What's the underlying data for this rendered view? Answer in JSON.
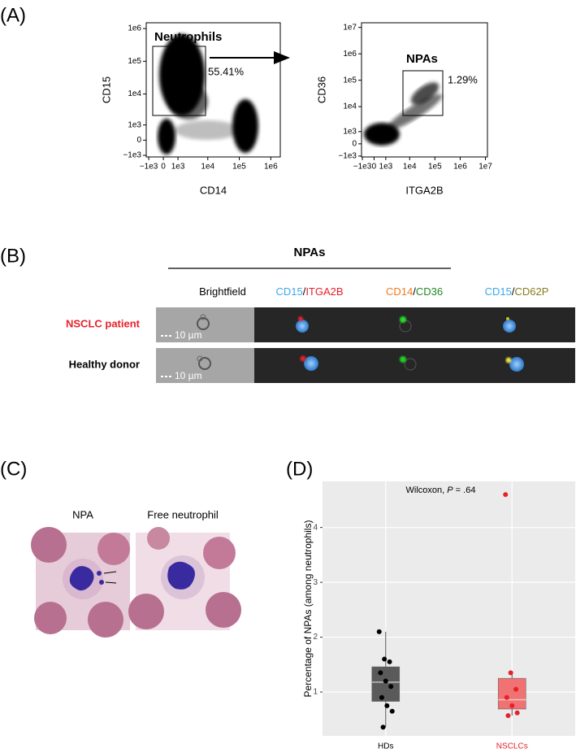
{
  "panels": [
    "(A)",
    "(B)",
    "(C)",
    "(D)"
  ],
  "chart_data": [
    {
      "type": "flow",
      "xlabel": "CD14",
      "ylabel": "CD15",
      "xlim": [
        -1250,
        2000000
      ],
      "ylim": [
        -1150,
        1500000
      ],
      "xticks": [
        {
          "value": -1000,
          "label": "−1e3"
        },
        0,
        {
          "value": 1000,
          "label": "1e3"
        },
        {
          "value": 10000,
          "label": "1e4"
        },
        {
          "value": 100000,
          "label": "1e5"
        },
        {
          "value": 1000000,
          "label": "1e6"
        }
      ],
      "yticks": [
        {
          "value": -1000,
          "label": "−1e3"
        },
        0,
        {
          "value": 1000,
          "label": "1e3"
        },
        {
          "value": 10000,
          "label": "1e4"
        },
        {
          "value": 100000,
          "label": "1e5"
        },
        {
          "value": 1000000,
          "label": "1e6"
        }
      ],
      "gate_label": "Neutrophils",
      "gate_percent": "55.41%"
    },
    {
      "type": "flow",
      "xlabel": "ITGA2B",
      "ylabel": "CD36",
      "xlim": [
        -1100,
        12000000
      ],
      "ylim": [
        -1100,
        15000000
      ],
      "xticks": [
        {
          "value": -1000,
          "label": "−1e3"
        },
        0,
        {
          "value": 1000,
          "label": "1e3"
        },
        {
          "value": 10000,
          "label": "1e4"
        },
        {
          "value": 100000,
          "label": "1e5"
        },
        {
          "value": 1000000,
          "label": "1e6"
        },
        {
          "value": 10000000,
          "label": "1e7"
        }
      ],
      "yticks": [
        {
          "value": -1000,
          "label": "−1e3"
        },
        0,
        {
          "value": 1000,
          "label": "1e3"
        },
        {
          "value": 10000,
          "label": "1e4"
        },
        {
          "value": 100000,
          "label": "1e5"
        },
        {
          "value": 1000000,
          "label": "1e6"
        },
        {
          "value": 10000000,
          "label": "1e7"
        }
      ],
      "gate_label": "NPAs",
      "gate_percent": "1.29%"
    },
    {
      "type": "box",
      "annotation": [
        "Wilcoxon, ",
        "P",
        " = .64"
      ],
      "ylabel": "Percentage of NPAs (among neutrophils)",
      "categories": [
        "HDs",
        "NSCLCs"
      ],
      "category_colors": [
        "#000000",
        "#e8202a"
      ],
      "ylim": [
        0.2,
        4.84
      ],
      "yticks": [
        1,
        2,
        3,
        4
      ],
      "grid": true,
      "boxes": [
        {
          "q1": 0.83,
          "median": 1.18,
          "q3": 1.46,
          "whisker_low": 0.36,
          "whisker_high": 2.1,
          "fill": "#5a5a5a",
          "median_color": "#bdbdbd",
          "point_color": "#000000",
          "points": [
            2.1,
            1.6,
            1.55,
            1.35,
            1.2,
            1.1,
            0.9,
            0.75,
            0.65,
            0.36
          ]
        },
        {
          "q1": 0.69,
          "median": 0.86,
          "q3": 1.25,
          "whisker_low": 0.57,
          "whisker_high": 1.35,
          "fill": "#f07272",
          "median_color": "#f8c4c4",
          "point_color": "#e8202a",
          "points": [
            4.6,
            1.35,
            1.05,
            0.9,
            0.75,
            0.62,
            0.57
          ]
        }
      ]
    }
  ],
  "imaging": {
    "title": "NPAs",
    "columns": [
      [
        {
          "text": "Brightfield",
          "color": "#000000"
        }
      ],
      [
        {
          "text": "CD15",
          "color": "#3ba7ef"
        },
        {
          "text": "/",
          "color": "#000000"
        },
        {
          "text": "ITGA2B",
          "color": "#e8202a"
        }
      ],
      [
        {
          "text": "CD14",
          "color": "#f07b1d"
        },
        {
          "text": "/",
          "color": "#000000"
        },
        {
          "text": "CD36",
          "color": "#1e8a1e"
        }
      ],
      [
        {
          "text": "CD15",
          "color": "#3ba7ef"
        },
        {
          "text": "/",
          "color": "#000000"
        },
        {
          "text": "CD62P",
          "color": "#8a7a1a"
        }
      ]
    ],
    "rows": [
      {
        "label": "NSCLC patient",
        "color": "#e8202a"
      },
      {
        "label": "Healthy donor",
        "color": "#000000"
      }
    ],
    "scale_bar": "10 µm"
  },
  "micrographs": {
    "labels": [
      "NPA",
      "Free neutrophil"
    ]
  }
}
